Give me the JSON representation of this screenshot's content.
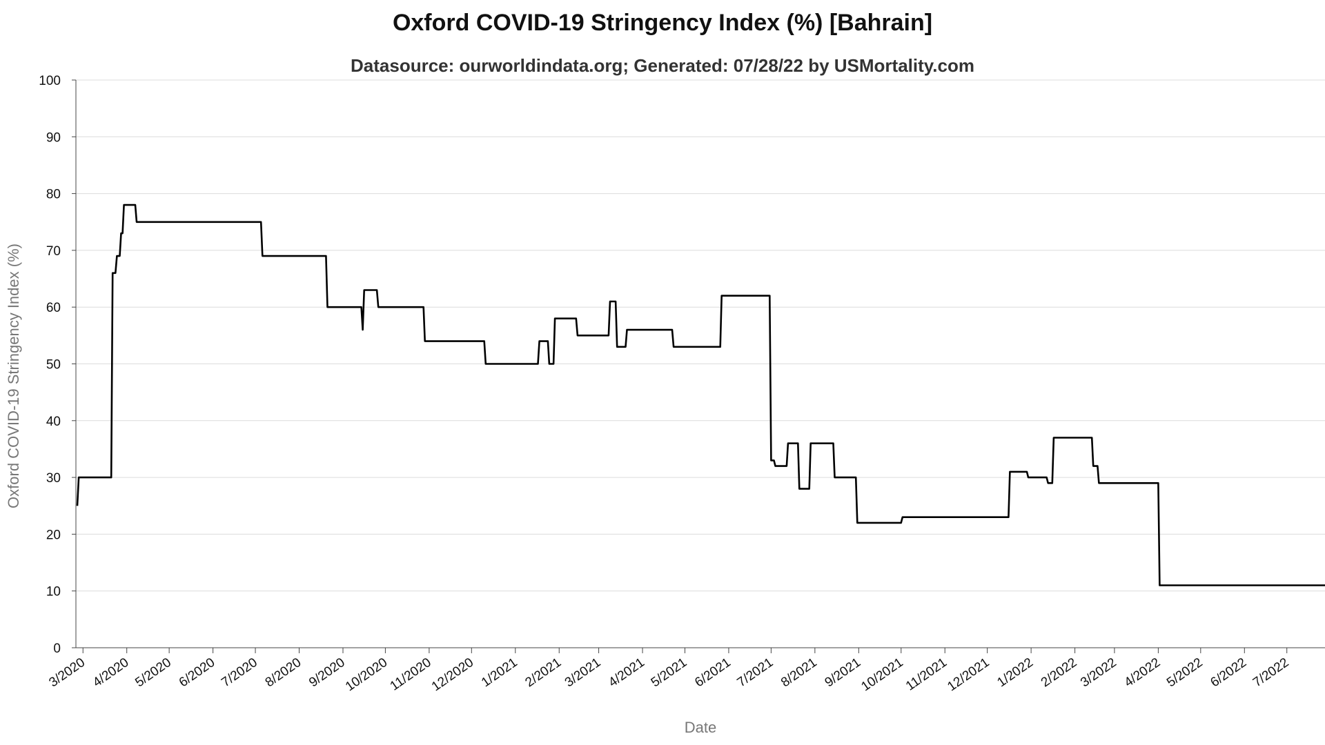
{
  "chart_data": {
    "type": "line",
    "title": "Oxford COVID-19 Stringency Index (%) [Bahrain]",
    "subtitle": "Datasource: ourworldindata.org; Generated: 07/28/22 by USMortality.com",
    "xlabel": "Date",
    "ylabel": "Oxford COVID-19 Stringency Index (%)",
    "ylim": [
      0,
      100
    ],
    "yticks": [
      0,
      10,
      20,
      30,
      40,
      50,
      60,
      70,
      80,
      90,
      100
    ],
    "xlim": [
      "2020-02-25",
      "2022-07-28"
    ],
    "xticks": [
      {
        "date": "2020-03-01",
        "label": "3/2020"
      },
      {
        "date": "2020-04-01",
        "label": "4/2020"
      },
      {
        "date": "2020-05-01",
        "label": "5/2020"
      },
      {
        "date": "2020-06-01",
        "label": "6/2020"
      },
      {
        "date": "2020-07-01",
        "label": "7/2020"
      },
      {
        "date": "2020-08-01",
        "label": "8/2020"
      },
      {
        "date": "2020-09-01",
        "label": "9/2020"
      },
      {
        "date": "2020-10-01",
        "label": "10/2020"
      },
      {
        "date": "2020-11-01",
        "label": "11/2020"
      },
      {
        "date": "2020-12-01",
        "label": "12/2020"
      },
      {
        "date": "2021-01-01",
        "label": "1/2021"
      },
      {
        "date": "2021-02-01",
        "label": "2/2021"
      },
      {
        "date": "2021-03-01",
        "label": "3/2021"
      },
      {
        "date": "2021-04-01",
        "label": "4/2021"
      },
      {
        "date": "2021-05-01",
        "label": "5/2021"
      },
      {
        "date": "2021-06-01",
        "label": "6/2021"
      },
      {
        "date": "2021-07-01",
        "label": "7/2021"
      },
      {
        "date": "2021-08-01",
        "label": "8/2021"
      },
      {
        "date": "2021-09-01",
        "label": "9/2021"
      },
      {
        "date": "2021-10-01",
        "label": "10/2021"
      },
      {
        "date": "2021-11-01",
        "label": "11/2021"
      },
      {
        "date": "2021-12-01",
        "label": "12/2021"
      },
      {
        "date": "2022-01-01",
        "label": "1/2022"
      },
      {
        "date": "2022-02-01",
        "label": "2/2022"
      },
      {
        "date": "2022-03-01",
        "label": "3/2022"
      },
      {
        "date": "2022-04-01",
        "label": "4/2022"
      },
      {
        "date": "2022-05-01",
        "label": "5/2022"
      },
      {
        "date": "2022-06-01",
        "label": "6/2022"
      },
      {
        "date": "2022-07-01",
        "label": "7/2022"
      }
    ],
    "grid": true,
    "line_color": "#000000",
    "series": [
      {
        "points": [
          [
            "2020-02-26",
            25
          ],
          [
            "2020-02-27",
            30
          ],
          [
            "2020-03-21",
            30
          ],
          [
            "2020-03-22",
            66
          ],
          [
            "2020-03-24",
            66
          ],
          [
            "2020-03-25",
            69
          ],
          [
            "2020-03-27",
            69
          ],
          [
            "2020-03-28",
            73
          ],
          [
            "2020-03-29",
            73
          ],
          [
            "2020-03-30",
            78
          ],
          [
            "2020-04-07",
            78
          ],
          [
            "2020-04-08",
            75
          ],
          [
            "2020-07-05",
            75
          ],
          [
            "2020-07-06",
            69
          ],
          [
            "2020-08-20",
            69
          ],
          [
            "2020-08-21",
            60
          ],
          [
            "2020-09-14",
            60
          ],
          [
            "2020-09-15",
            56
          ],
          [
            "2020-09-16",
            63
          ],
          [
            "2020-09-25",
            63
          ],
          [
            "2020-09-26",
            60
          ],
          [
            "2020-10-28",
            60
          ],
          [
            "2020-10-29",
            54
          ],
          [
            "2020-12-10",
            54
          ],
          [
            "2020-12-11",
            50
          ],
          [
            "2021-01-17",
            50
          ],
          [
            "2021-01-18",
            54
          ],
          [
            "2021-01-24",
            54
          ],
          [
            "2021-01-25",
            50
          ],
          [
            "2021-01-28",
            50
          ],
          [
            "2021-01-29",
            58
          ],
          [
            "2021-02-13",
            58
          ],
          [
            "2021-02-14",
            55
          ],
          [
            "2021-03-08",
            55
          ],
          [
            "2021-03-09",
            61
          ],
          [
            "2021-03-13",
            61
          ],
          [
            "2021-03-14",
            53
          ],
          [
            "2021-03-20",
            53
          ],
          [
            "2021-03-21",
            56
          ],
          [
            "2021-04-22",
            56
          ],
          [
            "2021-04-23",
            53
          ],
          [
            "2021-05-26",
            53
          ],
          [
            "2021-05-27",
            62
          ],
          [
            "2021-06-30",
            62
          ],
          [
            "2021-07-01",
            33
          ],
          [
            "2021-07-03",
            33
          ],
          [
            "2021-07-04",
            32
          ],
          [
            "2021-07-12",
            32
          ],
          [
            "2021-07-13",
            36
          ],
          [
            "2021-07-20",
            36
          ],
          [
            "2021-07-21",
            28
          ],
          [
            "2021-07-28",
            28
          ],
          [
            "2021-07-29",
            36
          ],
          [
            "2021-08-14",
            36
          ],
          [
            "2021-08-15",
            30
          ],
          [
            "2021-08-30",
            30
          ],
          [
            "2021-08-31",
            22
          ],
          [
            "2021-10-01",
            22
          ],
          [
            "2021-10-02",
            23
          ],
          [
            "2021-12-16",
            23
          ],
          [
            "2021-12-17",
            31
          ],
          [
            "2021-12-29",
            31
          ],
          [
            "2021-12-30",
            30
          ],
          [
            "2022-01-12",
            30
          ],
          [
            "2022-01-13",
            29
          ],
          [
            "2022-01-16",
            29
          ],
          [
            "2022-01-17",
            37
          ],
          [
            "2022-02-13",
            37
          ],
          [
            "2022-02-14",
            32
          ],
          [
            "2022-02-17",
            32
          ],
          [
            "2022-02-18",
            29
          ],
          [
            "2022-04-01",
            29
          ],
          [
            "2022-04-02",
            11
          ],
          [
            "2022-07-28",
            11
          ]
        ]
      }
    ]
  }
}
